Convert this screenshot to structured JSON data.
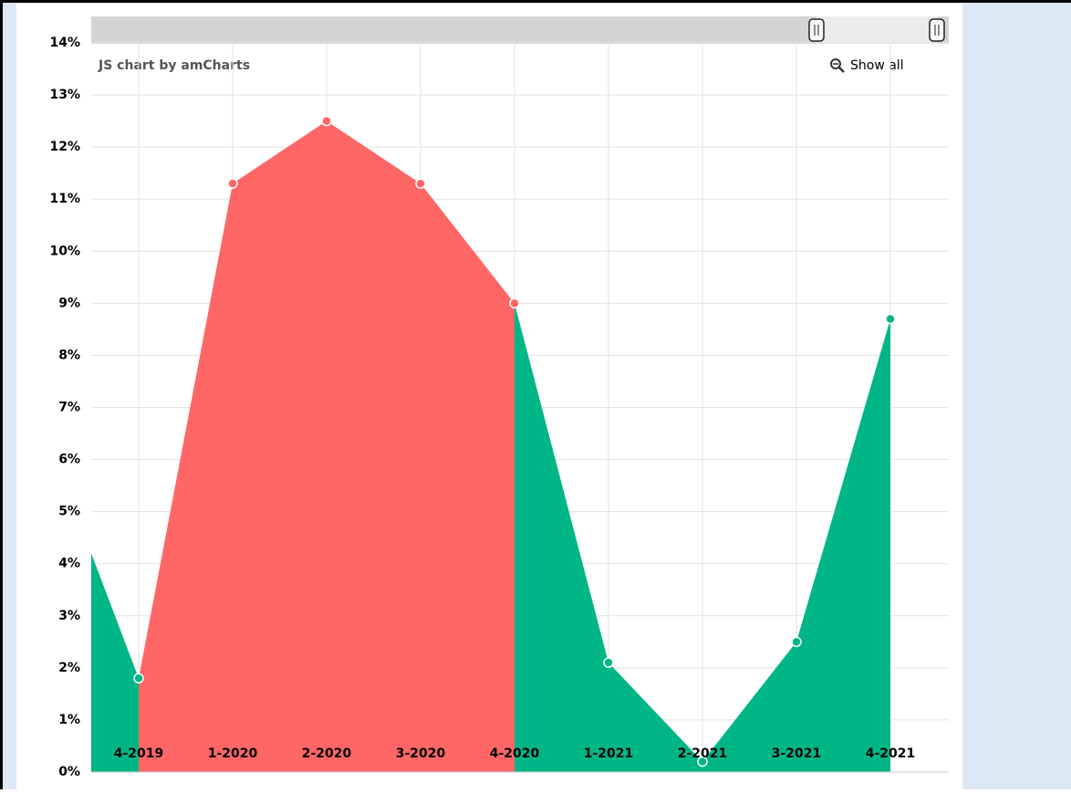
{
  "chart_data": {
    "type": "area",
    "credit": "JS chart by amCharts",
    "zoom_out_label": "Show all",
    "categories": [
      null,
      "4-2019",
      "1-2020",
      "2-2020",
      "3-2020",
      "4-2020",
      "1-2021",
      "2-2021",
      "3-2021",
      "4-2021"
    ],
    "series": [
      {
        "values": [
          4.2,
          1.8,
          11.3,
          12.5,
          11.3,
          9.0,
          2.1,
          0.2,
          2.5,
          8.7
        ],
        "point_colors": [
          "#00b686",
          "#ff6666",
          "#ff6666",
          "#ff6666",
          "#ff6666",
          "#00b686",
          "#00b686",
          "#00b686",
          "#00b686",
          "#00b686"
        ]
      }
    ],
    "ylim": [
      0,
      14
    ],
    "yticks": [
      {
        "value": 0,
        "label": "0%"
      },
      {
        "value": 1,
        "label": "1%"
      },
      {
        "value": 2,
        "label": "2%"
      },
      {
        "value": 3,
        "label": "3%"
      },
      {
        "value": 4,
        "label": "4%"
      },
      {
        "value": 5,
        "label": "5%"
      },
      {
        "value": 6,
        "label": "6%"
      },
      {
        "value": 7,
        "label": "7%"
      },
      {
        "value": 8,
        "label": "8%"
      },
      {
        "value": 9,
        "label": "9%"
      },
      {
        "value": 10,
        "label": "10%"
      },
      {
        "value": 11,
        "label": "11%"
      },
      {
        "value": 12,
        "label": "12%"
      },
      {
        "value": 13,
        "label": "13%"
      },
      {
        "value": 14,
        "label": "14%"
      }
    ],
    "grid": true
  }
}
